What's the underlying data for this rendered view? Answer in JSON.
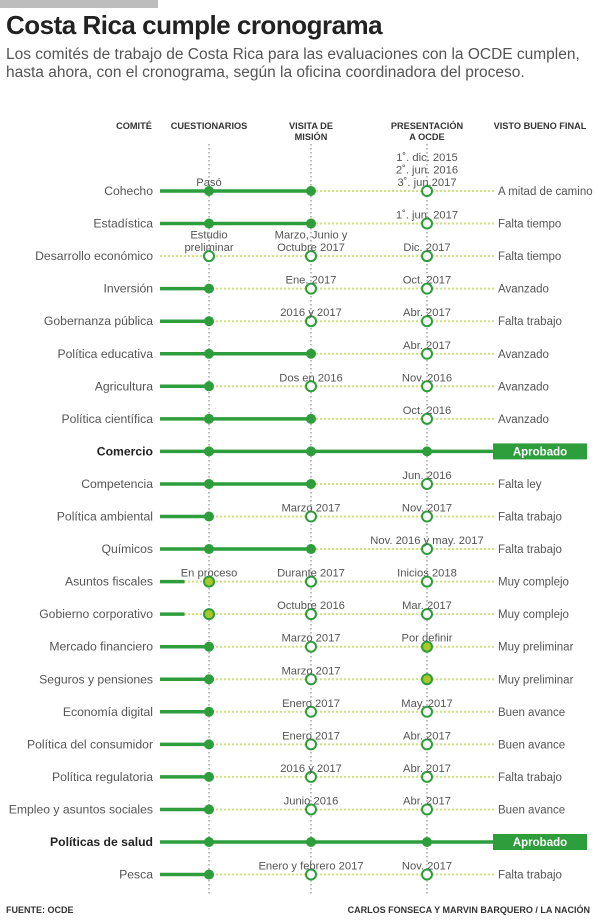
{
  "title": "Costa Rica cumple cronograma",
  "subtitle": "Los comités de trabajo de Costa Rica para las evaluaciones con la OCDE cumplen, hasta ahora, con el cronograma, según la oficina coordinadora del proceso.",
  "footer": {
    "source": "FUENTE: OCDE",
    "credits": "CARLOS FONSECA Y MARVIN BARQUERO / LA NACIÓN"
  },
  "colors": {
    "done": "#2e9e3c",
    "pending": "#cfe27a",
    "partial": "#a9c92a",
    "approved_badge": "#2e9e3c"
  },
  "chart_data": {
    "type": "table",
    "columns": [
      "COMITÉ",
      "CUESTIONARIOS",
      "VISITA DE MISIÓN",
      "PRESENTACIÓN A OCDE",
      "VISTO BUENO FINAL"
    ],
    "legend_note": "filled green dot = completed; open white dot = upcoming; yellow-green dot = in process / to be defined",
    "rows": [
      {
        "name": "Cohecho",
        "bold": false,
        "completed": 2,
        "dots": [
          "filled",
          "filled",
          "open"
        ],
        "labels": [
          "Pasó",
          "",
          "1˚. dic. 2015\n2˚. jun. 2016\n3˚. jun.2017"
        ],
        "final": "A mitad de camino"
      },
      {
        "name": "Estadística",
        "bold": false,
        "completed": 2,
        "dots": [
          "filled",
          "filled",
          "open"
        ],
        "labels": [
          "",
          "",
          "1˚. jun. 2017"
        ],
        "final": "Falta tiempo"
      },
      {
        "name": "Desarrollo económico",
        "bold": false,
        "completed": 0,
        "dots": [
          "open",
          "open",
          "open"
        ],
        "labels": [
          "Estudio\npreliminar",
          "Marzo, Junio y\nOctubre 2017",
          "Dic. 2017"
        ],
        "final": "Falta tiempo"
      },
      {
        "name": "Inversión",
        "bold": false,
        "completed": 1,
        "dots": [
          "filled",
          "open",
          "open"
        ],
        "labels": [
          "",
          "Ene. 2017",
          "Oct. 2017"
        ],
        "final": "Avanzado"
      },
      {
        "name": "Gobernanza pública",
        "bold": false,
        "completed": 1,
        "dots": [
          "filled",
          "open",
          "open"
        ],
        "labels": [
          "",
          "2016 y 2017",
          "Abr. 2017"
        ],
        "final": "Falta trabajo"
      },
      {
        "name": "Política educativa",
        "bold": false,
        "completed": 2,
        "dots": [
          "filled",
          "filled",
          "open"
        ],
        "labels": [
          "",
          "",
          "Abr. 2017"
        ],
        "final": "Avanzado"
      },
      {
        "name": "Agricultura",
        "bold": false,
        "completed": 1,
        "dots": [
          "filled",
          "open",
          "open"
        ],
        "labels": [
          "",
          "Dos en 2016",
          "Nov. 2016"
        ],
        "final": "Avanzado"
      },
      {
        "name": "Política científica",
        "bold": false,
        "completed": 2,
        "dots": [
          "filled",
          "filled",
          "open"
        ],
        "labels": [
          "",
          "",
          "Oct. 2016"
        ],
        "final": "Avanzado"
      },
      {
        "name": "Comercio",
        "bold": true,
        "completed": 4,
        "dots": [
          "filled",
          "filled",
          "filled"
        ],
        "labels": [
          "",
          "",
          ""
        ],
        "final": "Aprobado"
      },
      {
        "name": "Competencia",
        "bold": false,
        "completed": 2,
        "dots": [
          "filled",
          "filled",
          "open"
        ],
        "labels": [
          "",
          "",
          "Jun. 2016"
        ],
        "final": "Falta ley"
      },
      {
        "name": "Política ambiental",
        "bold": false,
        "completed": 1,
        "dots": [
          "filled",
          "open",
          "open"
        ],
        "labels": [
          "",
          "Marzo 2017",
          "Nov. 2017"
        ],
        "final": "Falta trabajo"
      },
      {
        "name": "Químicos",
        "bold": false,
        "completed": 2,
        "dots": [
          "filled",
          "filled",
          "open"
        ],
        "labels": [
          "",
          "",
          "Nov. 2016 y may. 2017"
        ],
        "final": "Falta trabajo"
      },
      {
        "name": "Asuntos fiscales",
        "bold": false,
        "completed": 0.5,
        "dots": [
          "yellow",
          "open",
          "open"
        ],
        "labels": [
          "En proceso",
          "Durante 2017",
          "Inicios 2018"
        ],
        "final": "Muy complejo"
      },
      {
        "name": "Gobierno corporativo",
        "bold": false,
        "completed": 0.5,
        "dots": [
          "yellow",
          "open",
          "open"
        ],
        "labels": [
          "",
          "Octubre 2016",
          "Mar. 2017"
        ],
        "final": "Muy complejo"
      },
      {
        "name": "Mercado financiero",
        "bold": false,
        "completed": 1,
        "dots": [
          "filled",
          "open",
          "yellow"
        ],
        "labels": [
          "",
          "Marzo 2017",
          "Por definir"
        ],
        "final": "Muy preliminar"
      },
      {
        "name": "Seguros y pensiones",
        "bold": false,
        "completed": 1,
        "dots": [
          "filled",
          "open",
          "yellow"
        ],
        "labels": [
          "",
          "Marzo 2017",
          ""
        ],
        "final": "Muy preliminar"
      },
      {
        "name": "Economía digital",
        "bold": false,
        "completed": 1,
        "dots": [
          "filled",
          "open",
          "open"
        ],
        "labels": [
          "",
          "Enero 2017",
          "May. 2017"
        ],
        "final": "Buen avance"
      },
      {
        "name": "Política del consumidor",
        "bold": false,
        "completed": 1,
        "dots": [
          "filled",
          "open",
          "open"
        ],
        "labels": [
          "",
          "Enero 2017",
          "Abr. 2017"
        ],
        "final": "Buen avance"
      },
      {
        "name": "Política regulatoria",
        "bold": false,
        "completed": 1,
        "dots": [
          "filled",
          "open",
          "open"
        ],
        "labels": [
          "",
          "2016 y 2017",
          "Abr. 2017"
        ],
        "final": "Falta trabajo"
      },
      {
        "name": "Empleo y asuntos sociales",
        "bold": false,
        "completed": 1,
        "dots": [
          "filled",
          "open",
          "open"
        ],
        "labels": [
          "",
          "Junio 2016",
          "Abr. 2017"
        ],
        "final": "Buen avance"
      },
      {
        "name": "Políticas de salud",
        "bold": true,
        "completed": 4,
        "dots": [
          "filled",
          "filled",
          "filled"
        ],
        "labels": [
          "",
          "",
          ""
        ],
        "final": "Aprobado"
      },
      {
        "name": "Pesca",
        "bold": false,
        "completed": 1,
        "dots": [
          "filled",
          "open",
          "open"
        ],
        "labels": [
          "",
          "Enero y febrero 2017",
          "Nov. 2017"
        ],
        "final": "Falta trabajo"
      }
    ]
  }
}
